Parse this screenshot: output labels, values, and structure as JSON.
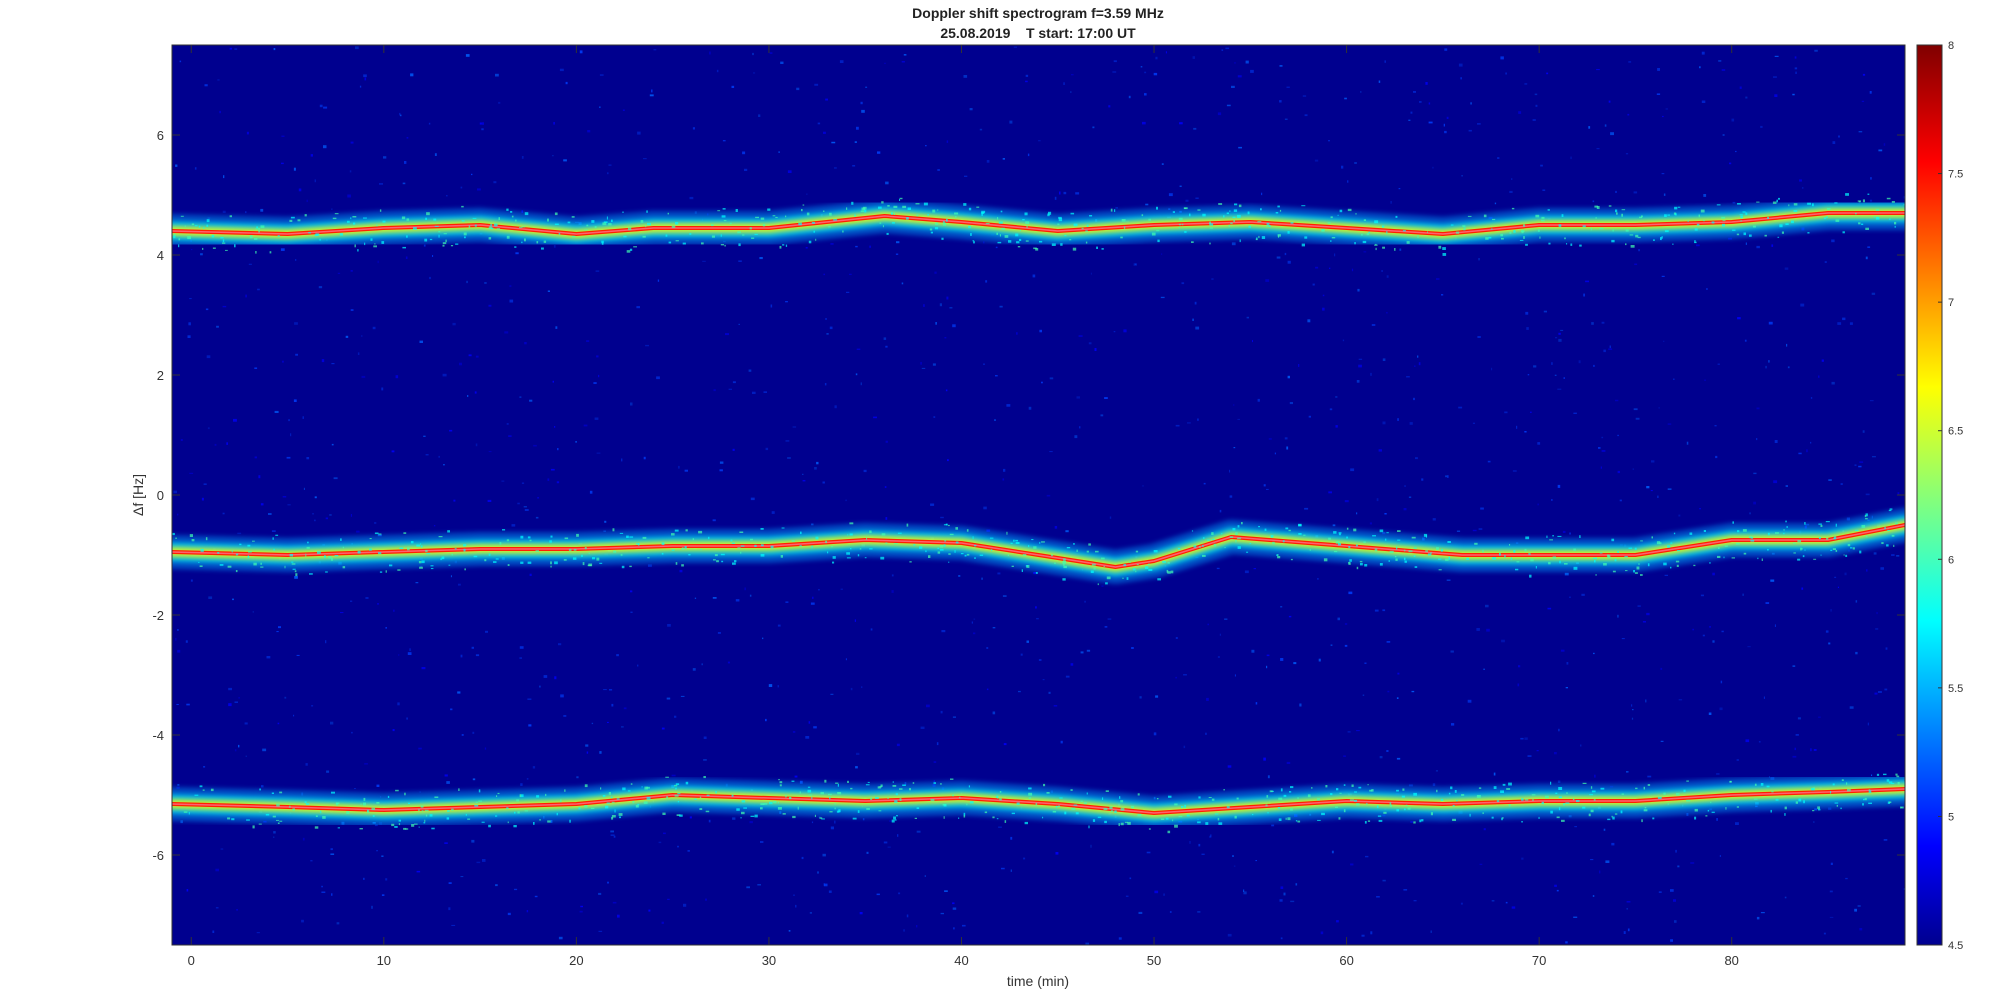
{
  "chart_data": {
    "type": "heatmap",
    "title": "Doppler shift spectrogram f=3.59 MHz",
    "subtitle": "25.08.2019    T start: 17:00 UT",
    "xlabel": "time (min)",
    "ylabel": "Δf [Hz]",
    "xlim": [
      -1,
      89
    ],
    "ylim": [
      -7.5,
      7.5
    ],
    "xticks": [
      0,
      10,
      20,
      30,
      40,
      50,
      60,
      70,
      80
    ],
    "yticks": [
      -6,
      -4,
      -2,
      0,
      2,
      4,
      6
    ],
    "colorbar": {
      "range": [
        4.5,
        8
      ],
      "ticks": [
        4.5,
        5,
        5.5,
        6,
        6.5,
        7,
        7.5,
        8
      ],
      "colormap": "jet"
    },
    "series": [
      {
        "x": [
          -1,
          5,
          10,
          15,
          20,
          24,
          30,
          36,
          40,
          45,
          50,
          55,
          60,
          65,
          70,
          75,
          80,
          85,
          89
        ],
        "values": [
          4.4,
          4.35,
          4.45,
          4.5,
          4.35,
          4.45,
          4.45,
          4.65,
          4.55,
          4.4,
          4.5,
          4.55,
          4.45,
          4.35,
          4.5,
          4.5,
          4.55,
          4.7,
          4.7
        ]
      },
      {
        "x": [
          -1,
          5,
          10,
          15,
          20,
          25,
          30,
          35,
          40,
          44,
          48,
          50,
          54,
          58,
          62,
          66,
          70,
          75,
          80,
          85,
          89
        ],
        "values": [
          -0.95,
          -1.0,
          -0.95,
          -0.9,
          -0.9,
          -0.85,
          -0.85,
          -0.75,
          -0.8,
          -1.0,
          -1.2,
          -1.1,
          -0.7,
          -0.8,
          -0.9,
          -1.0,
          -1.0,
          -1.0,
          -0.75,
          -0.75,
          -0.5
        ]
      },
      {
        "x": [
          -1,
          5,
          10,
          15,
          20,
          25,
          30,
          35,
          40,
          45,
          50,
          55,
          60,
          65,
          70,
          75,
          80,
          85,
          89
        ],
        "values": [
          -5.15,
          -5.2,
          -5.25,
          -5.2,
          -5.15,
          -5.0,
          -5.05,
          -5.1,
          -5.05,
          -5.15,
          -5.3,
          -5.2,
          -5.1,
          -5.15,
          -5.1,
          -5.1,
          -5.0,
          -4.95,
          -4.9
        ]
      }
    ],
    "colors": {
      "background": "#00008f",
      "axis": "#333333"
    }
  }
}
